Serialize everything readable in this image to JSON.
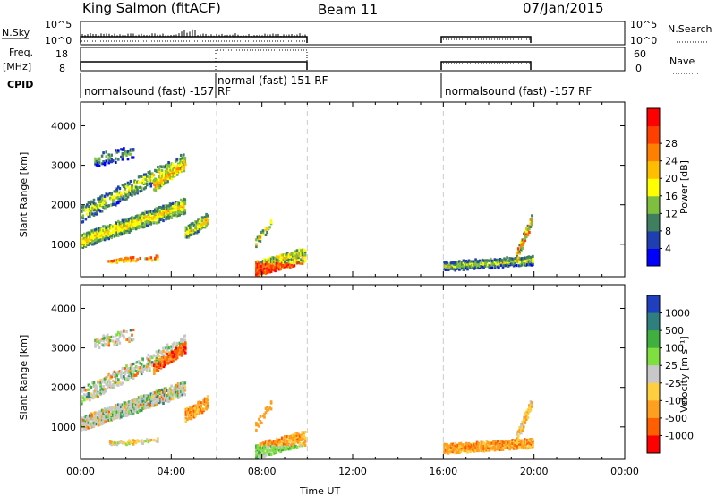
{
  "header": {
    "station": "King Salmon (fitACF)",
    "beam": "Beam 11",
    "date": "07/Jan/2015"
  },
  "labels": {
    "nsky": "N.Sky",
    "nsearch": "N.Search",
    "freq": "Freq.",
    "mhz": "[MHz]",
    "nave": "Nave",
    "cpid": "CPID",
    "nsky_ticks": [
      "10^5",
      "10^0"
    ],
    "nsky_ticks_right": [
      "10^5",
      "10^0"
    ],
    "freq_ticks": [
      "18",
      "8"
    ],
    "nave_ticks": [
      "60",
      "0"
    ]
  },
  "cpid_segments": [
    {
      "label": "normalsound (fast) -157 RF",
      "start": 0
    },
    {
      "label": "normal (fast) 151 RF",
      "start": 6
    },
    {
      "label": "normalsound (fast) -157 RF",
      "start": 16
    }
  ],
  "colors": {
    "power": [
      "#0000ff",
      "#1f3fb0",
      "#3f7f5f",
      "#7fbf3f",
      "#ffff00",
      "#ffbf00",
      "#ff7f00",
      "#ff3f00",
      "#ff0000"
    ],
    "velocity": [
      "#1f3fbf",
      "#2f7f7f",
      "#3faf3f",
      "#7fdf3f",
      "#c8c8c8",
      "#ffcf3f",
      "#ff9f1f",
      "#ff5f00",
      "#ff0000"
    ]
  },
  "chart_data": [
    {
      "type": "heatmap",
      "title": "",
      "xlabel": "",
      "ylabel": "Slant Range [km]",
      "x_ticks": [
        "00:00",
        "04:00",
        "08:00",
        "12:00",
        "16:00",
        "20:00",
        "00:00"
      ],
      "y_ticks": [
        1000,
        2000,
        3000,
        4000
      ],
      "xlim": [
        0,
        24
      ],
      "ylim": [
        180,
        4600
      ],
      "colorbar": {
        "label": "Power [dB]",
        "ticks": [
          4,
          8,
          12,
          16,
          20,
          24,
          28
        ]
      }
    },
    {
      "type": "heatmap",
      "title": "",
      "xlabel": "Time UT",
      "ylabel": "Slant Range [km]",
      "x_ticks": [
        "00:00",
        "04:00",
        "08:00",
        "12:00",
        "16:00",
        "20:00",
        "00:00"
      ],
      "y_ticks": [
        1000,
        2000,
        3000,
        4000
      ],
      "xlim": [
        0,
        24
      ],
      "ylim": [
        180,
        4600
      ],
      "colorbar": {
        "label": "Velocity [m s⁻¹]",
        "ticks": [
          1000,
          500,
          100,
          25,
          -25,
          -100,
          -500,
          -1000
        ]
      }
    }
  ]
}
